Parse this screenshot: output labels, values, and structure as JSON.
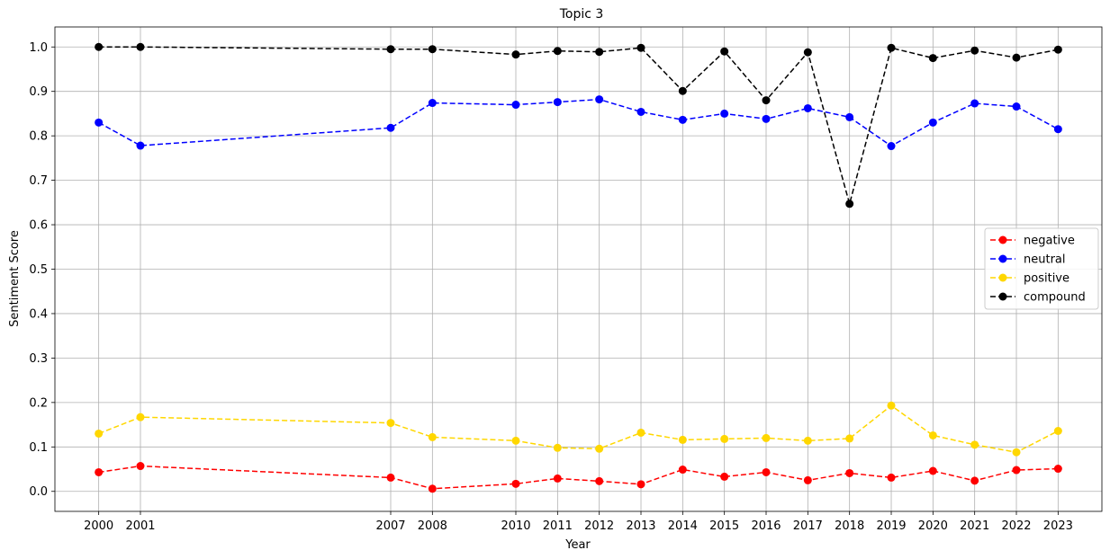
{
  "chart_data": {
    "type": "line",
    "title": "Topic 3",
    "xlabel": "Year",
    "ylabel": "Sentiment Score",
    "x": [
      2000,
      2001,
      2007,
      2008,
      2010,
      2011,
      2012,
      2013,
      2014,
      2015,
      2016,
      2017,
      2018,
      2019,
      2020,
      2021,
      2022,
      2023
    ],
    "x_ticks": [
      "2000",
      "2001",
      "2007",
      "2008",
      "2010",
      "2011",
      "2012",
      "2013",
      "2014",
      "2015",
      "2016",
      "2017",
      "2018",
      "2019",
      "2020",
      "2021",
      "2022",
      "2023"
    ],
    "y_ticks": [
      "0.0",
      "0.1",
      "0.2",
      "0.3",
      "0.4",
      "0.5",
      "0.6",
      "0.7",
      "0.8",
      "0.9",
      "1.0"
    ],
    "ylim": [
      -0.045,
      1.045
    ],
    "grid": true,
    "legend_position": "center-right",
    "series": [
      {
        "name": "negative",
        "color": "#ff0000",
        "values": [
          0.043,
          0.057,
          0.031,
          0.006,
          0.017,
          0.029,
          0.023,
          0.016,
          0.049,
          0.033,
          0.043,
          0.025,
          0.041,
          0.031,
          0.046,
          0.024,
          0.048,
          0.051
        ]
      },
      {
        "name": "neutral",
        "color": "#0000ff",
        "values": [
          0.83,
          0.778,
          0.818,
          0.874,
          0.87,
          0.876,
          0.882,
          0.854,
          0.836,
          0.85,
          0.838,
          0.862,
          0.842,
          0.777,
          0.83,
          0.873,
          0.866,
          0.815
        ]
      },
      {
        "name": "positive",
        "color": "#ffd700",
        "values": [
          0.13,
          0.167,
          0.154,
          0.122,
          0.114,
          0.098,
          0.096,
          0.132,
          0.116,
          0.118,
          0.12,
          0.114,
          0.119,
          0.193,
          0.126,
          0.105,
          0.088,
          0.136
        ]
      },
      {
        "name": "compound",
        "color": "#000000",
        "values": [
          1.0,
          1.0,
          0.995,
          0.995,
          0.983,
          0.991,
          0.989,
          0.998,
          0.901,
          0.99,
          0.88,
          0.988,
          0.647,
          0.998,
          0.975,
          0.992,
          0.976,
          0.994
        ]
      }
    ]
  }
}
